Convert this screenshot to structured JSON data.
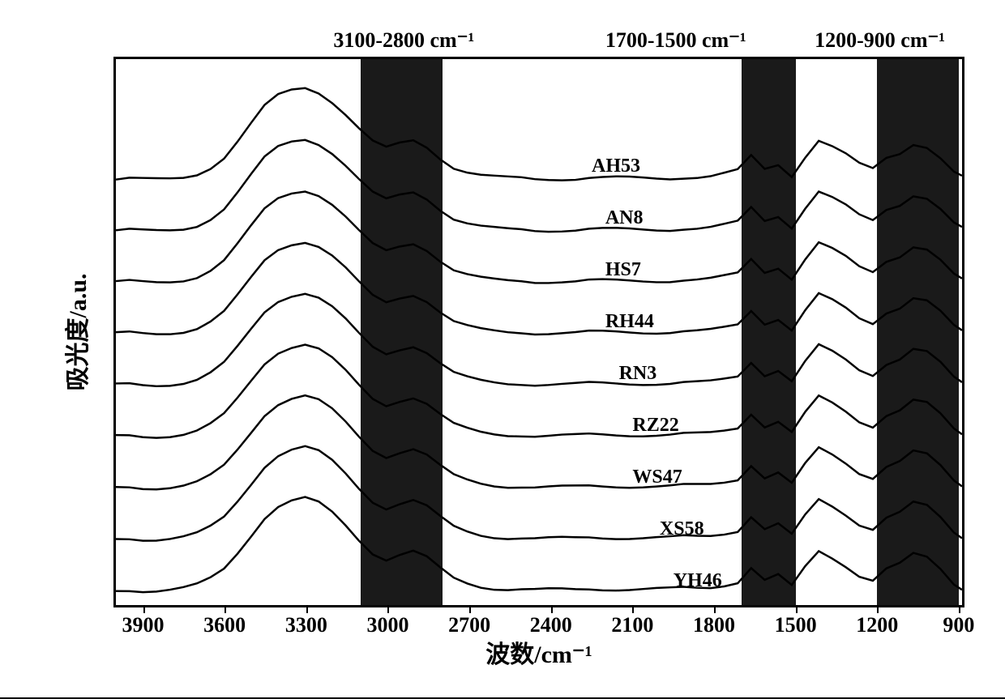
{
  "chart": {
    "type": "stacked-line-spectra",
    "background_color": "#ffffff",
    "border_color": "#000000",
    "border_width": 3,
    "line_color": "#000000",
    "line_width": 2.5,
    "x_axis": {
      "label": "波数/cm⁻¹",
      "min": 4000,
      "max": 870,
      "reversed": true,
      "ticks": [
        3900,
        3600,
        3300,
        3000,
        2700,
        2400,
        2100,
        1800,
        1500,
        1200,
        900
      ],
      "tick_fontsize": 26,
      "label_fontsize": 30
    },
    "y_axis": {
      "label": "吸光度/a.u.",
      "label_fontsize": 30,
      "show_ticks": false
    },
    "highlight_bands": [
      {
        "label": "3100-2800 cm⁻¹",
        "from": 3100,
        "to": 2800,
        "color": "#1a1a1a"
      },
      {
        "label": "1700-1500 cm⁻¹",
        "from": 1700,
        "to": 1500,
        "color": "#1a1a1a"
      },
      {
        "label": "1200-900 cm⁻¹",
        "from": 1200,
        "to": 900,
        "color": "#1a1a1a"
      }
    ],
    "band_label_fontsize": 26,
    "series_label_fontsize": 24,
    "stack_offset": 64,
    "base_y_bottom": 665,
    "peak_template_x": [
      4000,
      3950,
      3900,
      3850,
      3800,
      3750,
      3700,
      3650,
      3600,
      3550,
      3500,
      3450,
      3400,
      3350,
      3300,
      3250,
      3200,
      3150,
      3100,
      3050,
      3000,
      2950,
      2900,
      2850,
      2800,
      2750,
      2700,
      2650,
      2600,
      2550,
      2500,
      2450,
      2400,
      2350,
      2300,
      2250,
      2200,
      2150,
      2100,
      2050,
      2000,
      1950,
      1900,
      1850,
      1800,
      1750,
      1700,
      1650,
      1600,
      1550,
      1500,
      1450,
      1400,
      1350,
      1300,
      1250,
      1200,
      1150,
      1100,
      1050,
      1000,
      950,
      900,
      870
    ],
    "peak_template_y": [
      3,
      4,
      3,
      3,
      4,
      6,
      10,
      18,
      30,
      50,
      72,
      94,
      108,
      115,
      118,
      112,
      100,
      84,
      66,
      50,
      42,
      48,
      52,
      44,
      30,
      18,
      12,
      8,
      6,
      5,
      5,
      4,
      4,
      4,
      4,
      5,
      5,
      5,
      5,
      5,
      5,
      5,
      6,
      6,
      7,
      10,
      14,
      32,
      16,
      22,
      8,
      32,
      52,
      44,
      34,
      22,
      16,
      30,
      36,
      48,
      44,
      30,
      12,
      6
    ],
    "series": [
      {
        "label": "AH53",
        "label_x": 2250
      },
      {
        "label": "AN8",
        "label_x": 2200
      },
      {
        "label": "HS7",
        "label_x": 2200
      },
      {
        "label": "RH44",
        "label_x": 2200
      },
      {
        "label": "RN3",
        "label_x": 2150
      },
      {
        "label": "RZ22",
        "label_x": 2100
      },
      {
        "label": "WS47",
        "label_x": 2100
      },
      {
        "label": "XS58",
        "label_x": 2000
      },
      {
        "label": "YH46",
        "label_x": 1950
      }
    ]
  }
}
